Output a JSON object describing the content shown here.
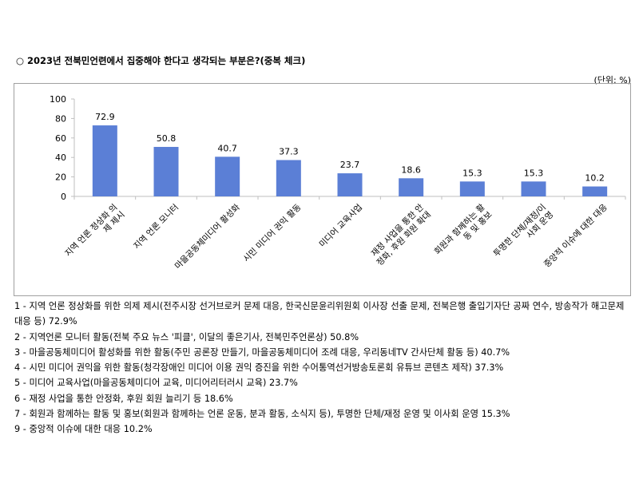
{
  "question": "○ 2023년 전북민언련에서 집중해야 한다고 생각되는 부분은?(중복 체크)",
  "unit": "(단위: %)",
  "chart_data": {
    "type": "bar",
    "categories": [
      [
        "지역 언론 정상화 의",
        "제 제시"
      ],
      [
        "지역 언론 모니터"
      ],
      [
        "마을공동체미디어 활성화"
      ],
      [
        "시민 미디어 권익 활동"
      ],
      [
        "미디어 교육사업"
      ],
      [
        "재정 사업을 통한 안",
        "정화, 후원 회원 확대"
      ],
      [
        "회원과 함께하는 활",
        "동 및 홍보"
      ],
      [
        "투명한 단체/재정/이",
        "사회 운영"
      ],
      [
        "중앙적 이슈에 대한 대응"
      ]
    ],
    "values": [
      72.9,
      50.8,
      40.7,
      37.3,
      23.7,
      18.6,
      15.3,
      15.3,
      10.2
    ],
    "value_labels": [
      "72.9",
      "50.8",
      "40.7",
      "37.3",
      "23.7",
      "18.6",
      "15.3",
      "15.3",
      "10.2"
    ],
    "y_ticks": [
      "0",
      "20",
      "40",
      "60",
      "80",
      "100"
    ],
    "ylim": [
      0,
      100
    ],
    "bar_color": "#5b7fd6",
    "grid": false,
    "title": "",
    "xlabel": "",
    "ylabel": ""
  },
  "notes": [
    "1 - 지역 언론 정상화를 위한 의제 제시(전주시장 선거브로커 문제 대응, 한국신문윤리위원회 이사장 선출 문제, 전북은행 출입기자단 공짜 연수, 방송작가 해고문제 대응 등) 72.9%",
    "2 - 지역언론 모니터 활동(전북 주요 뉴스 '피클', 이달의 좋은기사, 전북민주언론상) 50.8%",
    "3 - 마을공동체미디어 활성화를 위한 활동(주민 공론장 만들기, 마을공동체미디어 조례 대응, 우리동네TV 간사단체 활동 등) 40.7%",
    "4 - 시민 미디어 권익을 위한 활동(청각장애인 미디어 이용 권익 증진을 위한 수어통역선거방송토론회 유튜브 콘텐츠 제작) 37.3%",
    "5 - 미디어 교육사업(마을공동체미디어 교육, 미디어리터러시 교육) 23.7%",
    "6 - 재정 사업을 통한 안정화, 후원 회원 늘리기 등 18.6%",
    "7 - 회원과 함께하는 활동 및 홍보(회원과 함께하는 언론 운동, 분과 활동, 소식지 등), 투명한 단체/재정 운영 및 이사회 운영 15.3%",
    "9 - 중앙적 이슈에 대한 대응 10.2%"
  ]
}
